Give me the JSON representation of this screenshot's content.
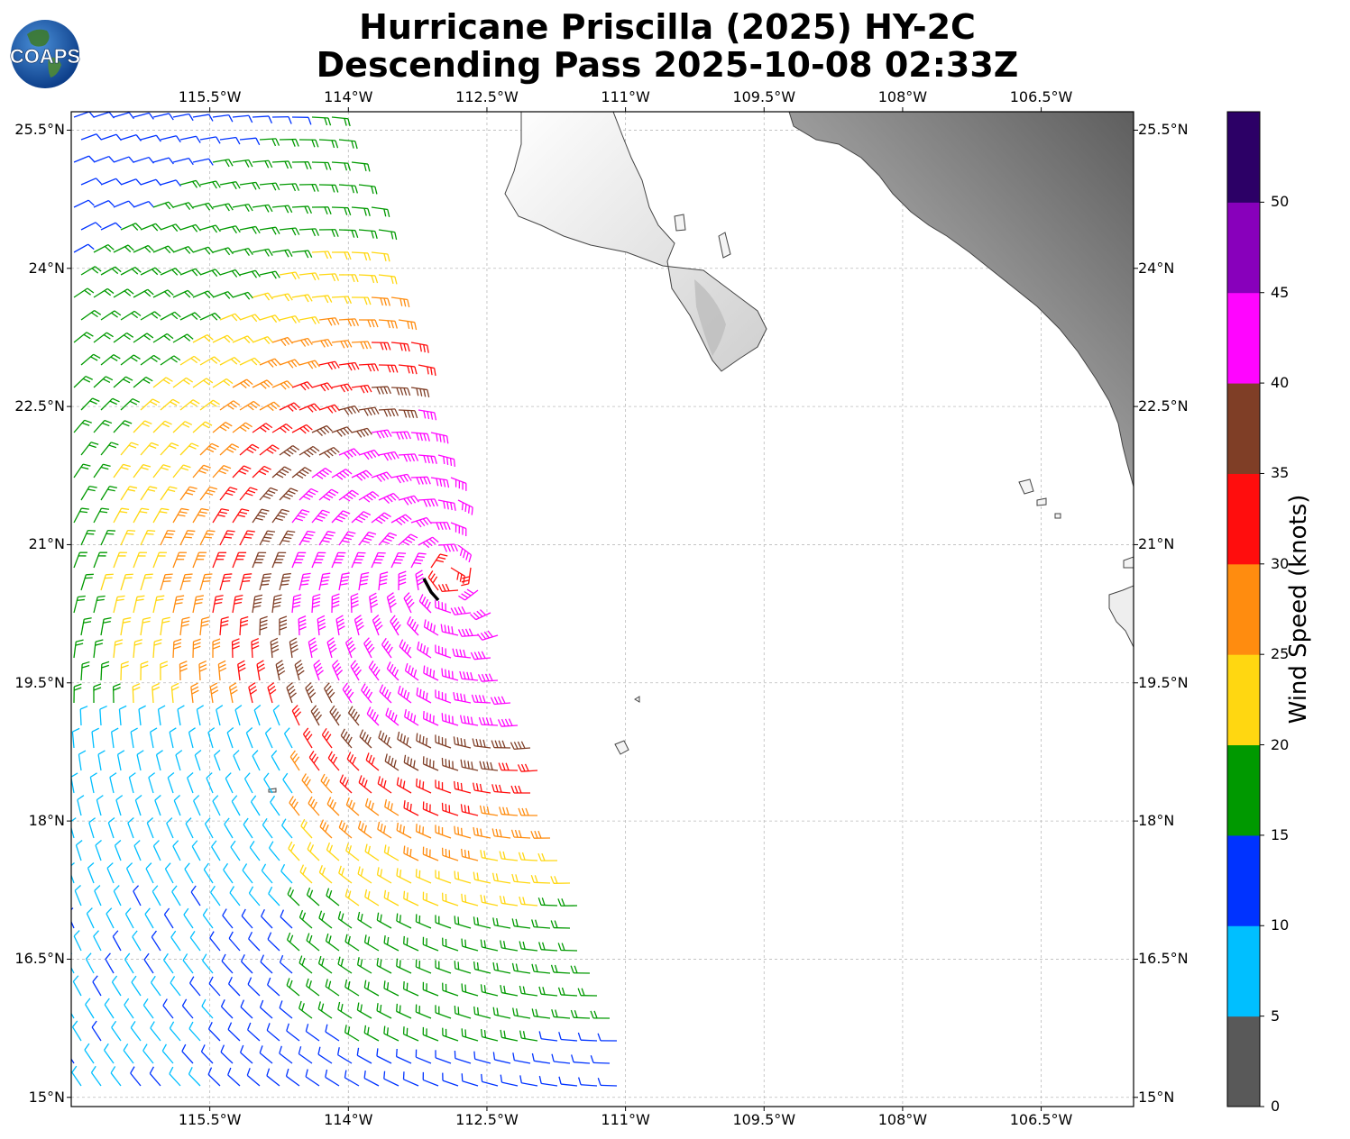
{
  "title_line1": "Hurricane Priscilla (2025) HY-2C",
  "title_line2": "Descending Pass 2025-10-08 02:33Z",
  "logo_text": "COAPS",
  "lon_labels": [
    "115.5°W",
    "114°W",
    "112.5°W",
    "111°W",
    "109.5°W",
    "108°W",
    "106.5°W"
  ],
  "lat_labels": [
    "25.5°N",
    "24°N",
    "22.5°N",
    "21°N",
    "19.5°N",
    "18°N",
    "16.5°N",
    "15°N"
  ],
  "colorbar": {
    "label": "Wind Speed (knots)",
    "ticks": [
      "0",
      "5",
      "10",
      "15",
      "20",
      "25",
      "30",
      "35",
      "40",
      "45",
      "50"
    ],
    "colors": [
      "#595959",
      "#00bfff",
      "#0033ff",
      "#009900",
      "#ffd711",
      "#ff8c0f",
      "#ff0d0d",
      "#7f3e26",
      "#ff05ff",
      "#8800bb",
      "#2c0066"
    ]
  },
  "chart_data": {
    "type": "wind barb map",
    "lon_range": [
      -117.0,
      -105.5
    ],
    "lat_range": [
      14.9,
      25.7
    ],
    "variable": "Wind Speed (knots)",
    "center_lon": -112.9,
    "center_lat": 20.7
  }
}
